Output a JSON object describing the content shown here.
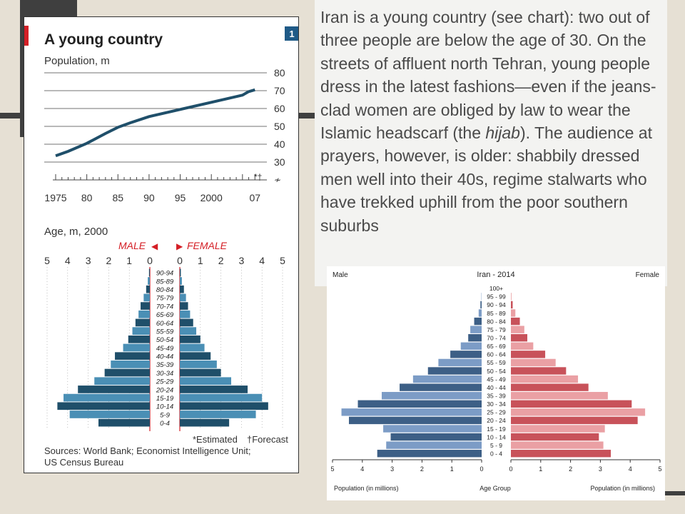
{
  "slide": {
    "text_parts": [
      "Iran is a young country (see chart): two out of three people are below the age of 30. On the streets of affluent north Tehran, young people dress in the latest fashions—even if the jeans-clad women are obliged by law to wear the Islamic headscarf (the ",
      "hijab",
      "). The audience at prayers, however, is older: shabbily dressed men well into their 40s, regime stalwarts who have trekked uphill from the poor southern suburbs"
    ]
  },
  "colors": {
    "accent_red": "#d41f26",
    "econ_dark": "#1f4f6a",
    "econ_light": "#4a8fb5",
    "cia_male_dark": "#3d5f86",
    "cia_male_light": "#7c9cc6",
    "cia_female_dark": "#c8525a",
    "cia_female_light": "#eaa0a4"
  },
  "chart_data": [
    {
      "type": "line",
      "title": "A young country",
      "badge": "1",
      "ylabel": "Population, m",
      "x": [
        1975,
        1977,
        1980,
        1983,
        1985,
        1987,
        1990,
        1995,
        2000,
        2005,
        2006,
        2007
      ],
      "values": [
        33.5,
        36,
        40.5,
        46,
        49.5,
        52,
        55.5,
        59.5,
        63.5,
        67.5,
        69.5,
        70.5
      ],
      "ylim": [
        30,
        80
      ],
      "yticks": [
        30,
        40,
        50,
        60,
        70,
        80
      ],
      "xtick_labels": [
        {
          "x": 1975,
          "label": "1975"
        },
        {
          "x": 1980,
          "label": "80"
        },
        {
          "x": 1985,
          "label": "85"
        },
        {
          "x": 1990,
          "label": "90"
        },
        {
          "x": 1995,
          "label": "95"
        },
        {
          "x": 2000,
          "label": "2000"
        },
        {
          "x": 2007,
          "label": "07"
        }
      ],
      "marker_text": "*†"
    },
    {
      "type": "bar",
      "subtitle": "Age, m, 2000",
      "male_label": "MALE",
      "female_label": "FEMALE",
      "axis_ticks": [
        "5",
        "4",
        "3",
        "2",
        "1",
        "0"
      ],
      "axis_ticks_right": [
        "0",
        "1",
        "2",
        "3",
        "4",
        "5"
      ],
      "categories": [
        "0-4",
        "5-9",
        "10-14",
        "15-19",
        "20-24",
        "25-29",
        "30-34",
        "35-39",
        "40-44",
        "45-49",
        "50-54",
        "55-59",
        "60-64",
        "65-69",
        "70-74",
        "75-79",
        "80-84",
        "85-89",
        "90-94"
      ],
      "series": [
        {
          "name": "MALE",
          "values": [
            2.5,
            3.9,
            4.5,
            4.2,
            3.5,
            2.7,
            2.2,
            1.9,
            1.7,
            1.3,
            1.05,
            0.85,
            0.7,
            0.55,
            0.45,
            0.3,
            0.18,
            0.1,
            0.04
          ]
        },
        {
          "name": "FEMALE",
          "values": [
            2.4,
            3.7,
            4.3,
            4.0,
            3.3,
            2.5,
            2.0,
            1.8,
            1.5,
            1.2,
            1.0,
            0.8,
            0.65,
            0.5,
            0.4,
            0.3,
            0.2,
            0.1,
            0.05
          ]
        }
      ],
      "note_estimated": "*Estimated",
      "note_forecast": "†Forecast",
      "sources": [
        "Sources: World Bank; Economist Intelligence Unit;",
        "US Census Bureau"
      ]
    },
    {
      "type": "bar",
      "title": "Iran - 2014",
      "male_label": "Male",
      "female_label": "Female",
      "xlabel_left": "Population (in millions)",
      "xlabel_center": "Age Group",
      "xlabel_right": "Population (in millions)",
      "axis_ticks_left": [
        "5",
        "4",
        "3",
        "2",
        "1",
        "0"
      ],
      "axis_ticks_right": [
        "0",
        "1",
        "2",
        "3",
        "4",
        "5"
      ],
      "categories": [
        "0 - 4",
        "5 - 9",
        "10 - 14",
        "15 - 19",
        "20 - 24",
        "25 - 29",
        "30 - 34",
        "35 - 39",
        "40 - 44",
        "45 - 49",
        "50 - 54",
        "55 - 59",
        "60 - 64",
        "65 - 69",
        "70 - 74",
        "75 - 79",
        "80 - 84",
        "85 - 89",
        "90 - 94",
        "95 - 99",
        "100+"
      ],
      "series": [
        {
          "name": "Male",
          "values": [
            3.5,
            3.2,
            3.05,
            3.3,
            4.45,
            4.7,
            4.15,
            3.35,
            2.75,
            2.3,
            1.8,
            1.45,
            1.05,
            0.7,
            0.45,
            0.38,
            0.25,
            0.1,
            0.04,
            0.01,
            0.0
          ]
        },
        {
          "name": "Female",
          "values": [
            3.35,
            3.1,
            2.95,
            3.15,
            4.25,
            4.5,
            4.05,
            3.25,
            2.6,
            2.25,
            1.85,
            1.5,
            1.15,
            0.75,
            0.55,
            0.45,
            0.3,
            0.15,
            0.06,
            0.02,
            0.0
          ]
        }
      ]
    }
  ]
}
